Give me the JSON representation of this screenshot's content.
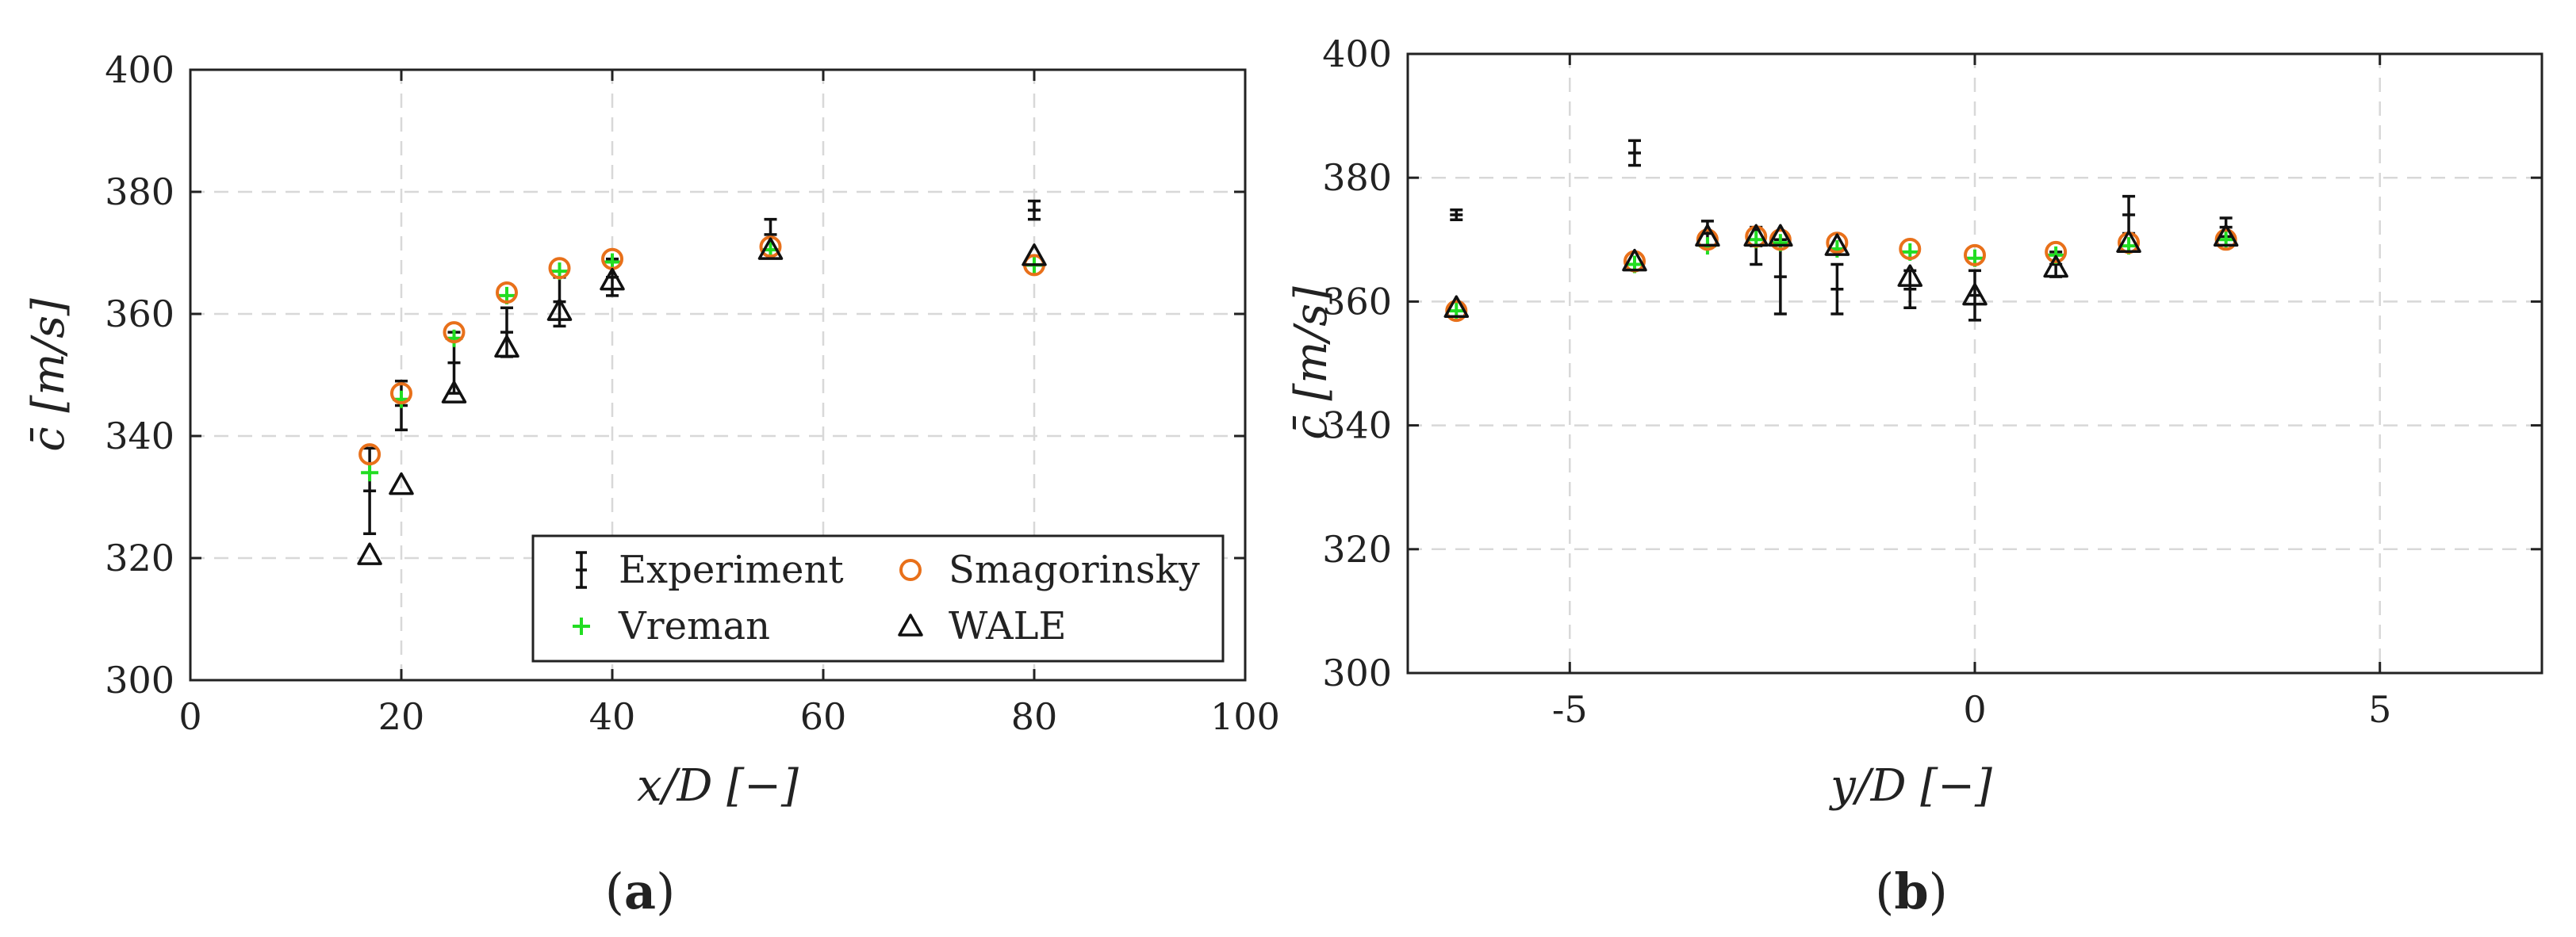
{
  "chart_data": [
    {
      "type": "scatter",
      "panel_label": "(a)",
      "panel_letter": "a",
      "xlabel": "x/D [−]",
      "ylabel": "c̄ [m/s]",
      "xlim": [
        0,
        100
      ],
      "ylim": [
        300,
        400
      ],
      "xticks": [
        0,
        20,
        40,
        60,
        80,
        100
      ],
      "xtick_labels": [
        "0",
        "20",
        "40",
        "60",
        "80",
        "100"
      ],
      "yticks": [
        300,
        320,
        340,
        360,
        380,
        400
      ],
      "ytick_labels": [
        "300",
        "320",
        "340",
        "360",
        "380",
        "400"
      ],
      "grid": true,
      "legend_position": "bottom-right",
      "legend": [
        "Experiment",
        "Vreman",
        "Smagorinsky",
        "WALE"
      ],
      "series": [
        {
          "name": "Experiment",
          "marker": "errorbar",
          "color": "#111111",
          "x": [
            17,
            20,
            25,
            30,
            35,
            40,
            55,
            80
          ],
          "y": [
            331,
            345,
            352,
            357,
            362,
            366,
            373,
            377
          ],
          "err": [
            7,
            4,
            5,
            4,
            4,
            3,
            2.5,
            1.5
          ]
        },
        {
          "name": "Vreman",
          "marker": "plus",
          "color": "#22dd22",
          "x": [
            17,
            20,
            25,
            30,
            35,
            40,
            55,
            80
          ],
          "y": [
            334,
            346,
            356,
            363,
            367,
            368.5,
            370.5,
            368
          ]
        },
        {
          "name": "Smagorinsky",
          "marker": "circle",
          "color": "#e8701a",
          "x": [
            17,
            20,
            25,
            30,
            35,
            40,
            55,
            80
          ],
          "y": [
            337,
            347,
            357,
            363.5,
            367.5,
            369,
            371,
            368
          ]
        },
        {
          "name": "WALE",
          "marker": "triangle",
          "color": "#111111",
          "x": [
            17,
            20,
            25,
            30,
            35,
            40,
            55,
            80
          ],
          "y": [
            320.5,
            332,
            347,
            354.5,
            360.5,
            365.5,
            370.5,
            369.5
          ]
        }
      ]
    },
    {
      "type": "scatter",
      "panel_label": "(b)",
      "panel_letter": "b",
      "xlabel": "y/D [−]",
      "ylabel": "c̄ [m/s]",
      "xlim": [
        -7,
        7
      ],
      "ylim": [
        300,
        400
      ],
      "xticks": [
        -5,
        0,
        5
      ],
      "xtick_labels": [
        "-5",
        "0",
        "5"
      ],
      "yticks": [
        300,
        320,
        340,
        360,
        380,
        400
      ],
      "ytick_labels": [
        "300",
        "320",
        "340",
        "360",
        "380",
        "400"
      ],
      "grid": true,
      "series": [
        {
          "name": "Experiment",
          "marker": "errorbar",
          "color": "#111111",
          "x": [
            -6.4,
            -4.2,
            -3.3,
            -2.7,
            -2.4,
            -1.7,
            -0.8,
            0,
            1,
            1.9,
            3.1
          ],
          "y": [
            374,
            384,
            371,
            369,
            364,
            362,
            362,
            361,
            366,
            374,
            372
          ],
          "err": [
            0.8,
            2,
            2,
            3,
            6,
            4,
            3,
            4,
            2,
            3,
            1.5
          ]
        },
        {
          "name": "Vreman",
          "marker": "plus",
          "color": "#22dd22",
          "x": [
            -6.4,
            -4.2,
            -3.3,
            -2.7,
            -2.4,
            -1.7,
            -0.8,
            0,
            1,
            1.9,
            3.1
          ],
          "y": [
            358.5,
            366,
            369,
            370,
            369.5,
            368.5,
            368,
            367,
            367.5,
            369,
            370
          ]
        },
        {
          "name": "Smagorinsky",
          "marker": "circle",
          "color": "#e8701a",
          "x": [
            -6.4,
            -4.2,
            -3.3,
            -2.7,
            -2.4,
            -1.7,
            -0.8,
            0,
            1,
            1.9,
            3.1
          ],
          "y": [
            358.5,
            366.5,
            370,
            370.5,
            370,
            369.5,
            368.5,
            367.5,
            368,
            369.5,
            370
          ]
        },
        {
          "name": "WALE",
          "marker": "triangle",
          "color": "#111111",
          "x": [
            -6.4,
            -4.2,
            -3.3,
            -2.7,
            -2.4,
            -1.7,
            -0.8,
            0,
            1,
            1.9,
            3.1
          ],
          "y": [
            359,
            366.5,
            370.5,
            370.5,
            370.5,
            369,
            364,
            361,
            365.5,
            369.5,
            370.5
          ]
        }
      ]
    }
  ]
}
